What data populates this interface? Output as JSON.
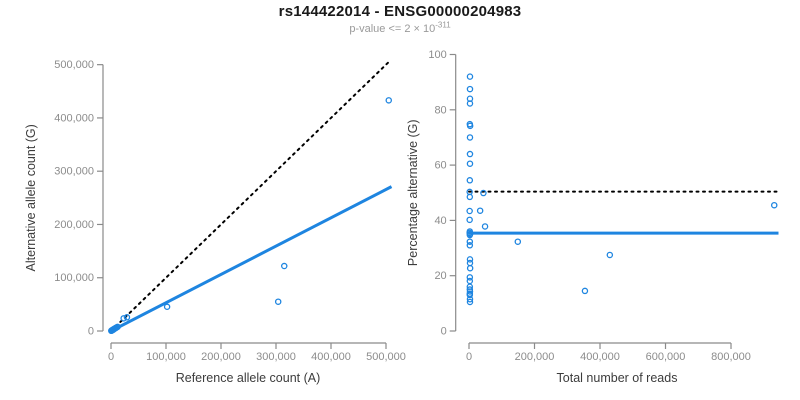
{
  "header": {
    "title": "rs144422014 - ENSG00000204983",
    "subtitle_prefix": "p-value <= 2 × 10",
    "subtitle_exponent": "-311"
  },
  "colors": {
    "point_blue": "#1E85E0",
    "line_blue": "#1E85E0",
    "dotted_black": "#000000",
    "axis_gray": "#8a8a8a",
    "tick_label_gray": "#8c8c8c",
    "axis_title_color": "#3c3c3c",
    "title_color": "#1a1a1a",
    "subtitle_gray": "#9a9a9a",
    "background": "#ffffff"
  },
  "chart_data": [
    {
      "type": "scatter",
      "name": "allele-counts-scatter",
      "title": "",
      "xlabel": "Reference allele count (A)",
      "ylabel": "Alternative allele count (G)",
      "xlim": [
        0,
        510000
      ],
      "ylim": [
        0,
        505000
      ],
      "grid": false,
      "legend": "none",
      "xticks": [
        0,
        100000,
        200000,
        300000,
        400000,
        500000
      ],
      "xtick_labels": [
        "0",
        "100,000",
        "200,000",
        "300,000",
        "400,000",
        "500,000"
      ],
      "yticks": [
        0,
        100000,
        200000,
        300000,
        400000,
        500000
      ],
      "ytick_labels": [
        "0",
        "100,000",
        "200,000",
        "300,000",
        "400,000",
        "500,000"
      ],
      "points": [
        [
          500,
          400
        ],
        [
          1200,
          900
        ],
        [
          2000,
          1400
        ],
        [
          3000,
          2100
        ],
        [
          4200,
          2900
        ],
        [
          5500,
          3700
        ],
        [
          7000,
          4700
        ],
        [
          8500,
          5600
        ],
        [
          10000,
          6600
        ],
        [
          12000,
          7800
        ],
        [
          3500,
          2000
        ],
        [
          6000,
          4200
        ],
        [
          23000,
          23800
        ],
        [
          29000,
          25700
        ],
        [
          102000,
          45500
        ],
        [
          304000,
          55000
        ],
        [
          315000,
          122000
        ],
        [
          505000,
          433000
        ]
      ],
      "lines": [
        {
          "name": "identity-line",
          "style": "dotted",
          "color": "#000000",
          "x1": 0,
          "y1": 0,
          "x2": 505000,
          "y2": 505000
        },
        {
          "name": "regression-line",
          "style": "solid",
          "color": "#1E85E0",
          "x1": 0,
          "y1": 0,
          "x2": 510000,
          "y2": 271000
        }
      ]
    },
    {
      "type": "scatter",
      "name": "percentage-alternative-scatter",
      "title": "",
      "xlabel": "Total number of reads",
      "ylabel": "Percentage alternative (G)",
      "xlim": [
        0,
        945000
      ],
      "ylim": [
        0,
        100
      ],
      "grid": false,
      "legend": "none",
      "xticks": [
        0,
        200000,
        400000,
        600000,
        800000
      ],
      "xtick_labels": [
        "0",
        "200,000",
        "400,000",
        "600,000",
        "800,000"
      ],
      "yticks": [
        0,
        20,
        40,
        60,
        80,
        100
      ],
      "ytick_labels": [
        "0",
        "20",
        "40",
        "60",
        "80",
        "100"
      ],
      "points": [
        [
          3000,
          92
        ],
        [
          3000,
          87.5
        ],
        [
          3000,
          84
        ],
        [
          3000,
          82.3
        ],
        [
          2500,
          74.8
        ],
        [
          3500,
          74.2
        ],
        [
          3000,
          70
        ],
        [
          3000,
          64
        ],
        [
          3000,
          60.5
        ],
        [
          2500,
          54.5
        ],
        [
          2000,
          50.3
        ],
        [
          2500,
          48.5
        ],
        [
          2000,
          43.4
        ],
        [
          44000,
          49.9
        ],
        [
          34000,
          43.5
        ],
        [
          49000,
          37.8
        ],
        [
          2000,
          40.2
        ],
        [
          2500,
          36.0
        ],
        [
          2000,
          35.5
        ],
        [
          3500,
          35.1
        ],
        [
          2500,
          34.7
        ],
        [
          2500,
          32.3
        ],
        [
          2500,
          31.0
        ],
        [
          3000,
          25.9
        ],
        [
          3000,
          24.6
        ],
        [
          3500,
          22.7
        ],
        [
          2500,
          19.4
        ],
        [
          2500,
          18.1
        ],
        [
          2500,
          16.0
        ],
        [
          2500,
          15.0
        ],
        [
          3000,
          14.3
        ],
        [
          2500,
          13.5
        ],
        [
          2500,
          13.0
        ],
        [
          3000,
          11.5
        ],
        [
          3000,
          10.5
        ],
        [
          149000,
          32.3
        ],
        [
          354000,
          14.5
        ],
        [
          430000,
          27.5
        ],
        [
          932000,
          45.5
        ]
      ],
      "lines": [
        {
          "name": "expected-percentage-line",
          "style": "dotted",
          "color": "#000000",
          "x1": 0,
          "y1": 50.4,
          "x2": 945000,
          "y2": 50.4
        },
        {
          "name": "mean-percentage-line",
          "style": "solid",
          "color": "#1E85E0",
          "x1": 0,
          "y1": 35.4,
          "x2": 945000,
          "y2": 35.4
        }
      ]
    }
  ]
}
